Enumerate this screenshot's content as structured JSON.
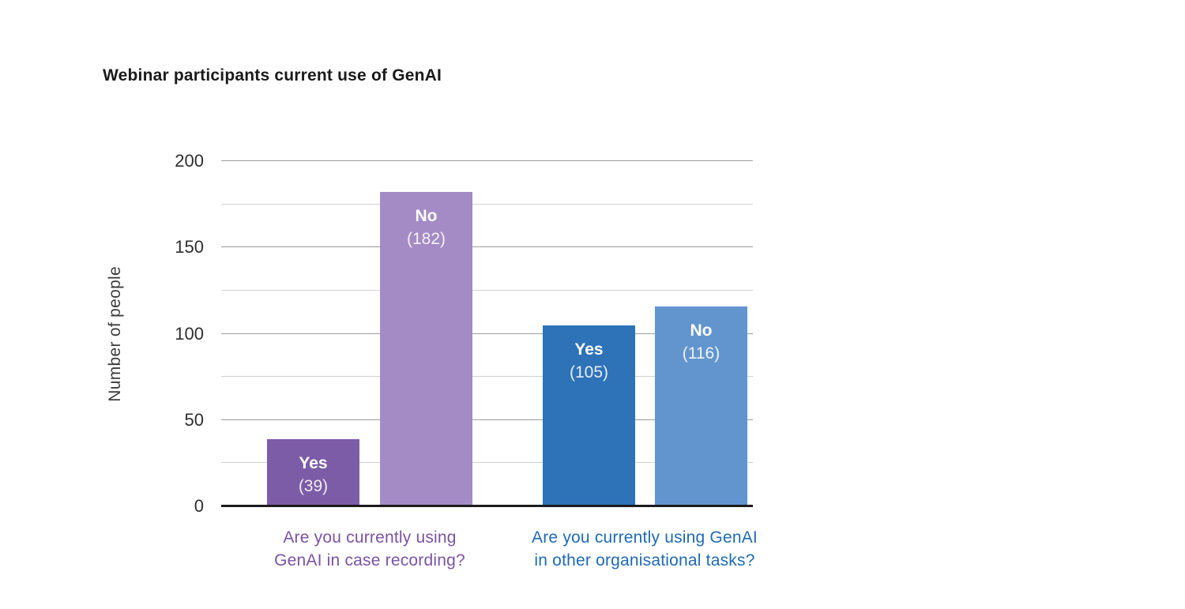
{
  "page": {
    "background": "#ffffff"
  },
  "chart_data": {
    "type": "bar",
    "title": "Webinar participants current use of GenAI",
    "xlabel": "",
    "ylabel": "Number of people",
    "ylim": [
      0,
      200
    ],
    "yticks": [
      0,
      50,
      100,
      150,
      200
    ],
    "minor_gridlines": [
      25,
      75,
      125,
      175
    ],
    "grid": "horizontal",
    "legend_position": "none",
    "bar_value_format": "label above count in parentheses, inside bar top",
    "groups": [
      {
        "id": "case-recording",
        "question": "Are you currently using GenAI in case recording?",
        "question_lines": [
          "Are you currently using",
          "GenAI in case recording?"
        ],
        "label_color": "#7C52A5",
        "bars": [
          {
            "label": "Yes",
            "value": 39,
            "color": "#7D5CA7"
          },
          {
            "label": "No",
            "value": 182,
            "color": "#A48BC5"
          }
        ]
      },
      {
        "id": "other-organisational-tasks",
        "question": "Are you currently using GenAI in other organisational tasks?",
        "question_lines": [
          "Are you currently using GenAI",
          "in other organisational tasks?"
        ],
        "label_color": "#1E6AB4",
        "bars": [
          {
            "label": "Yes",
            "value": 105,
            "color": "#2E72B8"
          },
          {
            "label": "No",
            "value": 116,
            "color": "#6295CD"
          }
        ]
      }
    ],
    "colors": {
      "title_text": "#1a1a1a",
      "axis_label_text": "#3d3d3d",
      "tick_text": "#2e2e2e",
      "major_gridline": "#9b9b9b",
      "minor_gridline": "#d0d0d0",
      "baseline": "#1c1c1c",
      "bar_label_text": "#ffffff"
    }
  }
}
